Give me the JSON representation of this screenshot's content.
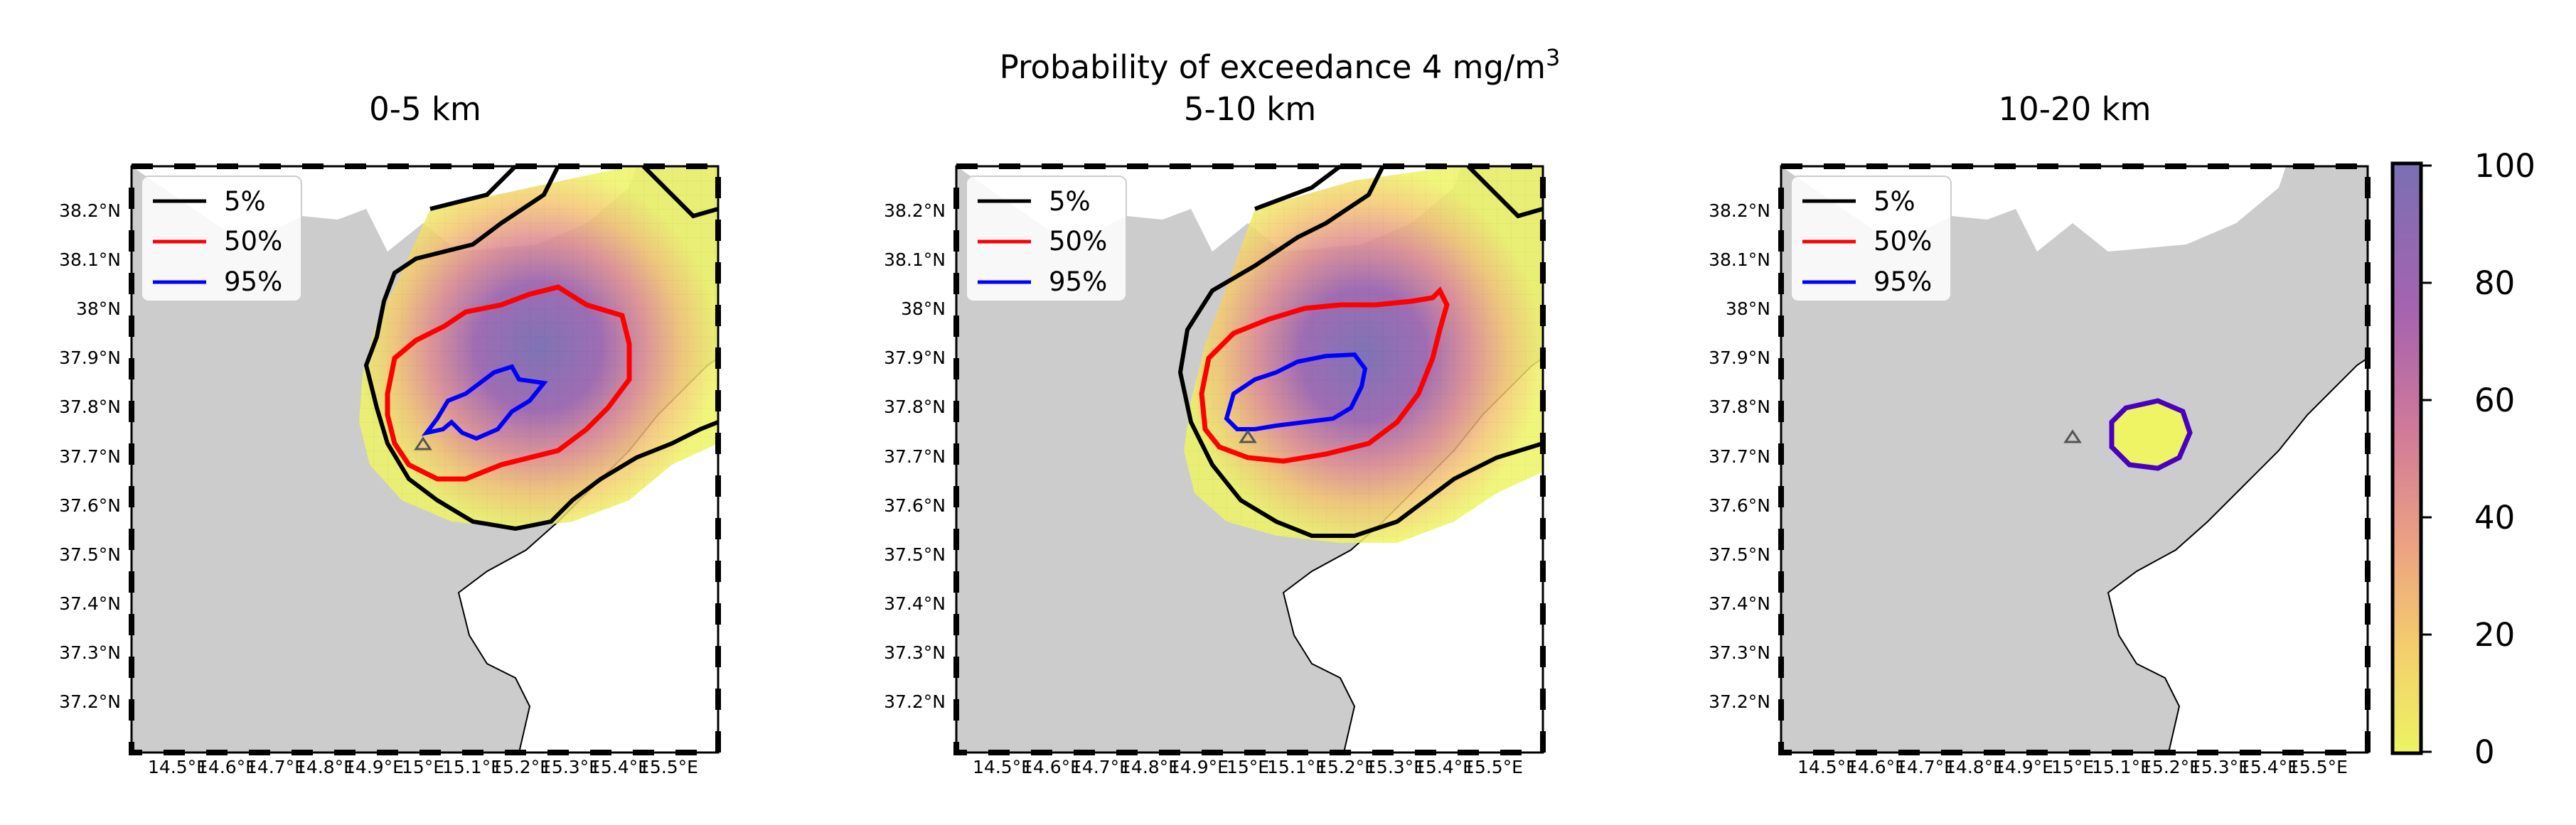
{
  "figure": {
    "suptitle": "Probability of exceedance 4 mg/m",
    "suptitle_superscript": "3"
  },
  "legend": [
    {
      "label": "5%",
      "color": "#000000"
    },
    {
      "label": "50%",
      "color": "#ff0000"
    },
    {
      "label": "95%",
      "color": "#0000ff"
    }
  ],
  "lat_labels": [
    "38.2°N",
    "38.1°N",
    "38°N",
    "37.9°N",
    "37.8°N",
    "37.7°N",
    "37.6°N",
    "37.5°N",
    "37.4°N",
    "37.3°N",
    "37.2°N"
  ],
  "lon_labels": [
    "14.5°E",
    "14.6°E",
    "14.7°E",
    "14.8°E",
    "14.9°E",
    "15°E",
    "15.1°E",
    "15.2°E",
    "15.3°E",
    "15.4°E",
    "15.5°E"
  ],
  "panels": [
    {
      "title": "0-5 km"
    },
    {
      "title": "5-10 km"
    },
    {
      "title": "10-20 km"
    }
  ],
  "colorbar": {
    "ticks": [
      "0",
      "20",
      "40",
      "60",
      "80",
      "100"
    ],
    "range": [
      0,
      100
    ],
    "colors": [
      "#ecf463",
      "#f0e361",
      "#f4cd6d",
      "#f3b878",
      "#eba083",
      "#df8a8f",
      "#d0799a",
      "#bd6ba4",
      "#a663b0",
      "#8e60b5",
      "#7f65b4",
      "#7a70b3"
    ]
  },
  "colors": {
    "land": "#cccccc",
    "sea": "#ffffff",
    "vent_marker": "#555555"
  }
}
